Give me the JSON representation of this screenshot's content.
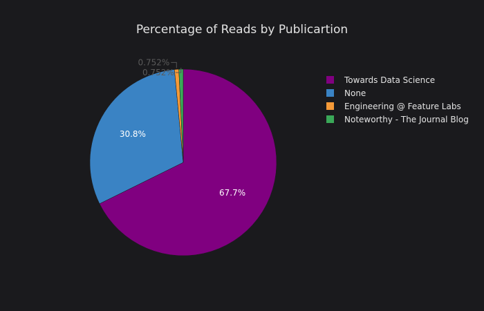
{
  "chart_data": {
    "type": "pie",
    "title": "Percentage of Reads by Publicartion",
    "categories": [
      "Towards Data Science",
      "None",
      "Engineering @ Feature Labs",
      "Noteworthy - The Journal Blog"
    ],
    "values": [
      67.7,
      30.8,
      0.752,
      0.752
    ],
    "labels": [
      "67.7%",
      "30.8%",
      "0.752%",
      "0.752%"
    ],
    "colors": [
      "#800080",
      "#3a83c4",
      "#f59a38",
      "#3aa858"
    ],
    "legend_position": "right",
    "direction": "clockwise",
    "start": "top"
  }
}
